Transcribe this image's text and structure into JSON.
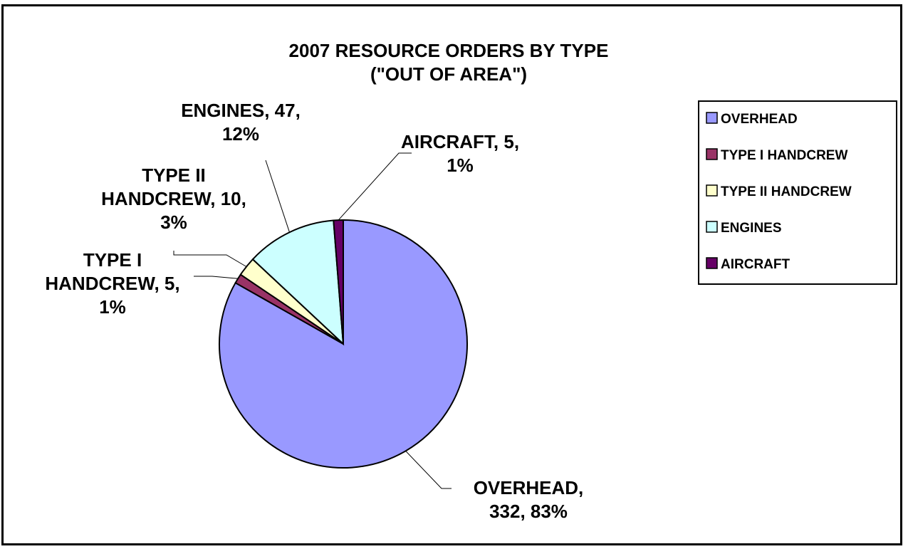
{
  "chart_data": {
    "type": "pie",
    "title_lines": [
      "2007 RESOURCE ORDERS BY TYPE",
      "(\"OUT OF AREA\")"
    ],
    "legend_position": "right",
    "slices": [
      {
        "name": "OVERHEAD",
        "value": 332,
        "percent": "83%",
        "color": "#9999ff",
        "label_lines": [
          "OVERHEAD,",
          "332, 83%"
        ]
      },
      {
        "name": "TYPE I HANDCREW",
        "value": 5,
        "percent": "1%",
        "color": "#993366",
        "label_lines": [
          "TYPE I",
          "HANDCREW, 5,",
          "1%"
        ]
      },
      {
        "name": "TYPE II HANDCREW",
        "value": 10,
        "percent": "3%",
        "color": "#ffffcc",
        "label_lines": [
          "TYPE II",
          "HANDCREW, 10,",
          "3%"
        ]
      },
      {
        "name": "ENGINES",
        "value": 47,
        "percent": "12%",
        "color": "#ccffff",
        "label_lines": [
          "ENGINES, 47,",
          "12%"
        ]
      },
      {
        "name": "AIRCRAFT",
        "value": 5,
        "percent": "1%",
        "color": "#660066",
        "label_lines": [
          "AIRCRAFT, 5,",
          "1%"
        ]
      }
    ]
  }
}
